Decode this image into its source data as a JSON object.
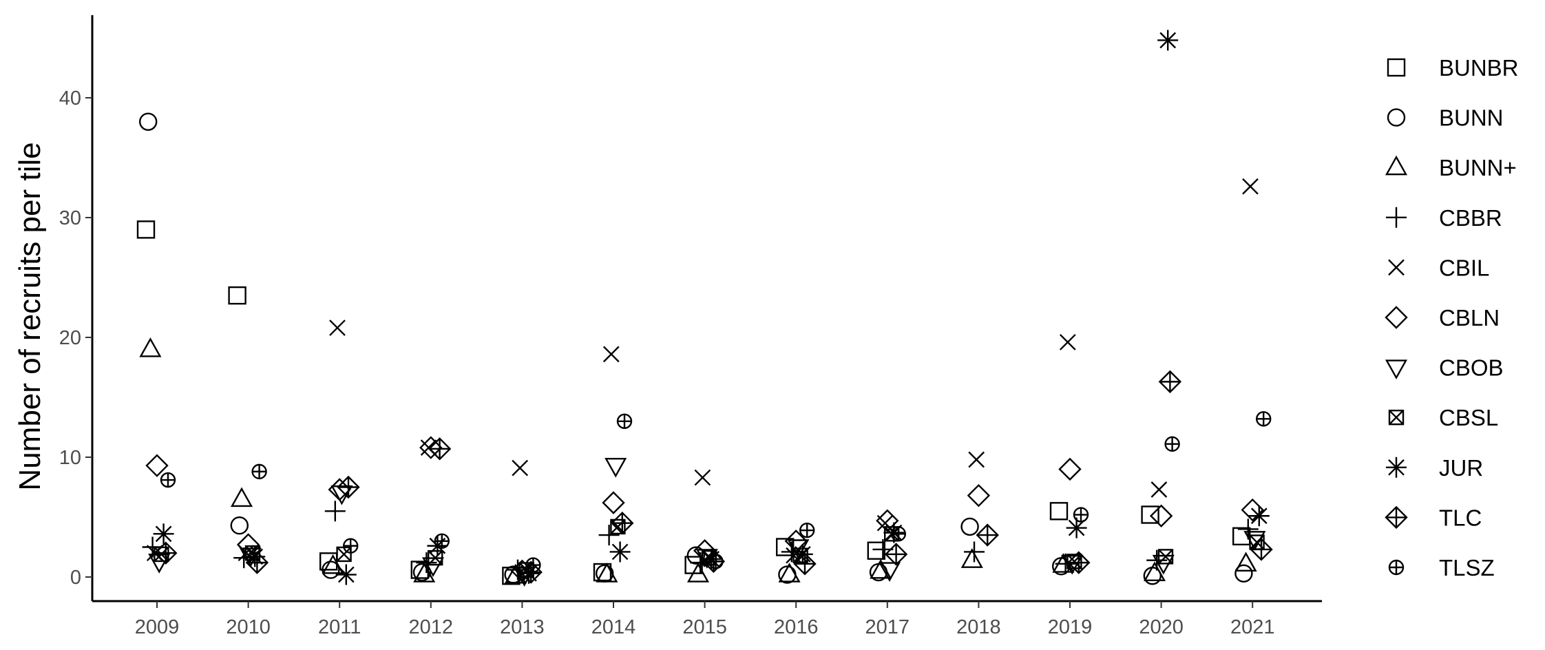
{
  "chart_data": {
    "type": "scatter",
    "title": "",
    "xlabel": "",
    "ylabel": "Number of recruits per tile",
    "categories": [
      "2009",
      "2010",
      "2011",
      "2012",
      "2013",
      "2014",
      "2015",
      "2016",
      "2017",
      "2018",
      "2019",
      "2020",
      "2021"
    ],
    "ylim": [
      -2,
      47
    ],
    "yticks": [
      0,
      10,
      20,
      30,
      40
    ],
    "grid": false,
    "legend_position": "right",
    "series": [
      {
        "name": "BUNBR",
        "shape": "square",
        "points": [
          {
            "x": "2009",
            "y": 29
          },
          {
            "x": "2010",
            "y": 23.5
          },
          {
            "x": "2011",
            "y": 1.3
          },
          {
            "x": "2012",
            "y": 0.6
          },
          {
            "x": "2013",
            "y": 0.1
          },
          {
            "x": "2014",
            "y": 0.4
          },
          {
            "x": "2015",
            "y": 1
          },
          {
            "x": "2016",
            "y": 2.5
          },
          {
            "x": "2017",
            "y": 2.2
          },
          {
            "x": "2019",
            "y": 5.5
          },
          {
            "x": "2020",
            "y": 5.2
          },
          {
            "x": "2021",
            "y": 3.4
          }
        ]
      },
      {
        "name": "BUNN",
        "shape": "circle",
        "points": [
          {
            "x": "2009",
            "y": 38
          },
          {
            "x": "2010",
            "y": 4.3
          },
          {
            "x": "2011",
            "y": 0.6
          },
          {
            "x": "2012",
            "y": 0.4
          },
          {
            "x": "2013",
            "y": 0.2
          },
          {
            "x": "2014",
            "y": 0.3
          },
          {
            "x": "2015",
            "y": 1.8
          },
          {
            "x": "2016",
            "y": 0.2
          },
          {
            "x": "2017",
            "y": 0.4
          },
          {
            "x": "2018",
            "y": 4.2
          },
          {
            "x": "2019",
            "y": 0.9
          },
          {
            "x": "2020",
            "y": 0.1
          },
          {
            "x": "2021",
            "y": 0.3
          }
        ]
      },
      {
        "name": "BUNN+",
        "shape": "triangle",
        "points": [
          {
            "x": "2009",
            "y": 19
          },
          {
            "x": "2010",
            "y": 6.5
          },
          {
            "x": "2011",
            "y": 0.9
          },
          {
            "x": "2012",
            "y": 0.2
          },
          {
            "x": "2013",
            "y": 0.1
          },
          {
            "x": "2014",
            "y": 0.2
          },
          {
            "x": "2015",
            "y": 0.2
          },
          {
            "x": "2016",
            "y": 0.2
          },
          {
            "x": "2017",
            "y": 0.5
          },
          {
            "x": "2018",
            "y": 1.4
          },
          {
            "x": "2019",
            "y": 1.0
          },
          {
            "x": "2020",
            "y": 0.3
          },
          {
            "x": "2021",
            "y": 1.1
          }
        ]
      },
      {
        "name": "CBBR",
        "shape": "plus",
        "points": [
          {
            "x": "2009",
            "y": 2.5
          },
          {
            "x": "2010",
            "y": 1.6
          },
          {
            "x": "2011",
            "y": 5.5
          },
          {
            "x": "2012",
            "y": 1.2
          },
          {
            "x": "2013",
            "y": 0.6
          },
          {
            "x": "2014",
            "y": 3.5
          },
          {
            "x": "2015",
            "y": 1.2
          },
          {
            "x": "2016",
            "y": 2.1
          },
          {
            "x": "2017",
            "y": 2.3
          },
          {
            "x": "2018",
            "y": 2.1
          },
          {
            "x": "2019",
            "y": 1.1
          },
          {
            "x": "2020",
            "y": 1.4
          },
          {
            "x": "2021",
            "y": 4.0
          }
        ]
      },
      {
        "name": "CBIL",
        "shape": "cross",
        "points": [
          {
            "x": "2009",
            "y": 2.0
          },
          {
            "x": "2010",
            "y": 2.0
          },
          {
            "x": "2011",
            "y": 20.8
          },
          {
            "x": "2012",
            "y": 10.8
          },
          {
            "x": "2013",
            "y": 9.1
          },
          {
            "x": "2014",
            "y": 18.6
          },
          {
            "x": "2015",
            "y": 8.3
          },
          {
            "x": "2016",
            "y": 1.8
          },
          {
            "x": "2017",
            "y": 4.5
          },
          {
            "x": "2018",
            "y": 9.8
          },
          {
            "x": "2019",
            "y": 19.6
          },
          {
            "x": "2020",
            "y": 7.3
          },
          {
            "x": "2021",
            "y": 32.6
          }
        ]
      },
      {
        "name": "CBLN",
        "shape": "diamond",
        "points": [
          {
            "x": "2009",
            "y": 9.3
          },
          {
            "x": "2010",
            "y": 2.7
          },
          {
            "x": "2011",
            "y": 7.3
          },
          {
            "x": "2012",
            "y": 10.8
          },
          {
            "x": "2013",
            "y": 0.5
          },
          {
            "x": "2014",
            "y": 6.2
          },
          {
            "x": "2015",
            "y": 2.2
          },
          {
            "x": "2016",
            "y": 3.0
          },
          {
            "x": "2017",
            "y": 4.7
          },
          {
            "x": "2018",
            "y": 6.8
          },
          {
            "x": "2019",
            "y": 9.0
          },
          {
            "x": "2020",
            "y": 5.1
          },
          {
            "x": "2021",
            "y": 5.6
          }
        ]
      },
      {
        "name": "CBOB",
        "shape": "triangle-down",
        "points": [
          {
            "x": "2009",
            "y": 1.3
          },
          {
            "x": "2010",
            "y": 1.8
          },
          {
            "x": "2011",
            "y": 7.0
          },
          {
            "x": "2012",
            "y": 1.0
          },
          {
            "x": "2013",
            "y": 0.2
          },
          {
            "x": "2014",
            "y": 9.3
          },
          {
            "x": "2015",
            "y": 1.7
          },
          {
            "x": "2016",
            "y": 2.5
          },
          {
            "x": "2017",
            "y": 0.6
          },
          {
            "x": "2019",
            "y": 1.2
          },
          {
            "x": "2020",
            "y": 1.2
          },
          {
            "x": "2021",
            "y": 3.2
          }
        ]
      },
      {
        "name": "CBSL",
        "shape": "square-cross",
        "points": [
          {
            "x": "2009",
            "y": 1.9
          },
          {
            "x": "2010",
            "y": 2.0
          },
          {
            "x": "2011",
            "y": 1.9
          },
          {
            "x": "2012",
            "y": 1.6
          },
          {
            "x": "2013",
            "y": 0.6
          },
          {
            "x": "2014",
            "y": 4.2
          },
          {
            "x": "2015",
            "y": 1.6
          },
          {
            "x": "2016",
            "y": 1.8
          },
          {
            "x": "2017",
            "y": 3.6
          },
          {
            "x": "2019",
            "y": 1.3
          },
          {
            "x": "2020",
            "y": 1.7
          },
          {
            "x": "2021",
            "y": 2.9
          }
        ]
      },
      {
        "name": "JUR",
        "shape": "star",
        "points": [
          {
            "x": "2009",
            "y": 3.6
          },
          {
            "x": "2010",
            "y": 1.7
          },
          {
            "x": "2011",
            "y": 0.2
          },
          {
            "x": "2012",
            "y": 2.6
          },
          {
            "x": "2013",
            "y": 0.3
          },
          {
            "x": "2014",
            "y": 2.1
          },
          {
            "x": "2015",
            "y": 1.5
          },
          {
            "x": "2016",
            "y": 1.9
          },
          {
            "x": "2017",
            "y": 3.7
          },
          {
            "x": "2019",
            "y": 4.1
          },
          {
            "x": "2020",
            "y": 44.8
          },
          {
            "x": "2021",
            "y": 5.1
          }
        ]
      },
      {
        "name": "TLC",
        "shape": "diamond-plus",
        "points": [
          {
            "x": "2009",
            "y": 2.0
          },
          {
            "x": "2010",
            "y": 1.2
          },
          {
            "x": "2011",
            "y": 7.5
          },
          {
            "x": "2012",
            "y": 10.7
          },
          {
            "x": "2013",
            "y": 0.4
          },
          {
            "x": "2014",
            "y": 4.5
          },
          {
            "x": "2015",
            "y": 1.3
          },
          {
            "x": "2016",
            "y": 1.1
          },
          {
            "x": "2017",
            "y": 1.9
          },
          {
            "x": "2018",
            "y": 3.5
          },
          {
            "x": "2019",
            "y": 1.2
          },
          {
            "x": "2020",
            "y": 16.3
          },
          {
            "x": "2021",
            "y": 2.3
          }
        ]
      },
      {
        "name": "TLSZ",
        "shape": "circle-plus",
        "points": [
          {
            "x": "2009",
            "y": 8.1
          },
          {
            "x": "2010",
            "y": 8.8
          },
          {
            "x": "2011",
            "y": 2.6
          },
          {
            "x": "2012",
            "y": 3.0
          },
          {
            "x": "2013",
            "y": 1.0
          },
          {
            "x": "2014",
            "y": 13.0
          },
          {
            "x": "2015",
            "y": 1.3
          },
          {
            "x": "2016",
            "y": 3.9
          },
          {
            "x": "2017",
            "y": 3.6
          },
          {
            "x": "2019",
            "y": 5.2
          },
          {
            "x": "2020",
            "y": 11.1
          },
          {
            "x": "2021",
            "y": 13.2
          }
        ]
      }
    ]
  }
}
